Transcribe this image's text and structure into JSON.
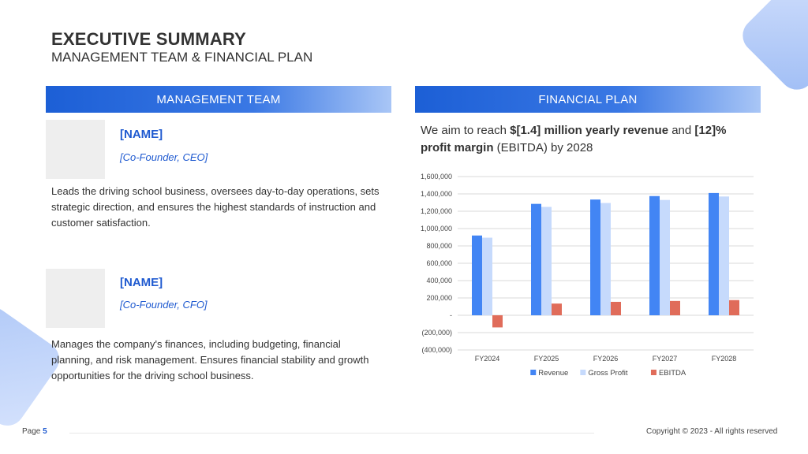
{
  "header": {
    "title": "EXECUTIVE SUMMARY",
    "subtitle": "MANAGEMENT TEAM & FINANCIAL PLAN"
  },
  "management": {
    "heading": "MANAGEMENT TEAM",
    "members": [
      {
        "name": "[NAME]",
        "role": "[Co-Founder, CEO]",
        "description": "Leads the driving school business, oversees day-to-day operations, sets strategic direction, and ensures the highest standards of instruction and customer satisfaction."
      },
      {
        "name": "[NAME]",
        "role": "[Co-Founder, CFO]",
        "description": "Manages the company's finances, including budgeting, financial planning, and risk management. Ensures financial stability and growth opportunities for the driving school business."
      }
    ]
  },
  "financial": {
    "heading": "FINANCIAL PLAN",
    "text_1": "We aim to reach ",
    "text_bold_1": "$[1.4] million yearly revenue",
    "text_2": " and ",
    "text_bold_2": "[12]% profit margin",
    "text_3": " (EBITDA) by 2028"
  },
  "chart_data": {
    "type": "bar",
    "categories": [
      "FY2024",
      "FY2025",
      "FY2026",
      "FY2027",
      "FY2028"
    ],
    "series": [
      {
        "name": "Revenue",
        "color": "#4285f4",
        "values": [
          920000,
          1285000,
          1335000,
          1375000,
          1410000
        ]
      },
      {
        "name": "Gross Profit",
        "color": "#c6dafc",
        "values": [
          895000,
          1250000,
          1295000,
          1330000,
          1370000
        ]
      },
      {
        "name": "EBITDA",
        "color": "#e06c5a",
        "values": [
          -140000,
          135000,
          155000,
          165000,
          175000
        ]
      }
    ],
    "yticks": [
      "1,600,000",
      "1,400,000",
      "1,200,000",
      "1,000,000",
      "800,000",
      "600,000",
      "400,000",
      "200,000",
      "-",
      "(200,000)",
      "(400,000)"
    ],
    "ylim": [
      -400000,
      1600000
    ],
    "grid": true,
    "legend": "bottom"
  },
  "footer": {
    "page_label": "Page ",
    "page_number": "5",
    "copyright": "Copyright © 2023 - All rights reserved"
  }
}
